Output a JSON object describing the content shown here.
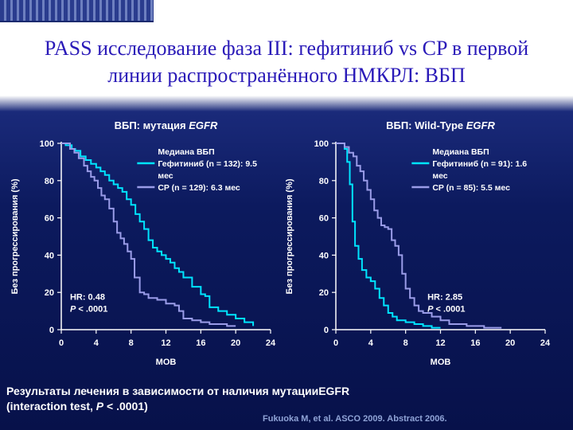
{
  "slide": {
    "title_line1": "PASS исследование фаза III: гефитиниб vs CP в первой",
    "title_line2": "линии распространённого НМКРЛ: ВБП",
    "bottom_line1": "Результаты лечения в зависимости от наличия мутацииEGFR",
    "bottom_line2_a": "(interaction test, ",
    "bottom_line2_p": "P",
    "bottom_line2_b": " < .0001)",
    "reference": "Fukuoka M, et al. ASCO 2009. Abstract 2006."
  },
  "colors": {
    "gefitinib": "#00e5ff",
    "cp": "#9a9ce8",
    "axis": "#ffffff",
    "text": "#ffffff"
  },
  "chart_data": [
    {
      "type": "line",
      "title_plain": "ВБП: мутация ",
      "title_italic": "EGFR",
      "xlabel": "МОВ",
      "ylabel": "Без прогрессирования (%)",
      "xlim": [
        0,
        24
      ],
      "ylim": [
        0,
        100
      ],
      "xticks": [
        0,
        4,
        8,
        12,
        16,
        20,
        24
      ],
      "yticks": [
        0,
        20,
        40,
        60,
        80,
        100
      ],
      "legend_title": "Медиана ВБП",
      "legend": [
        "Гефитиниб (n = 132): 9.5",
        "мес",
        "CP (n = 129): 6.3 мес"
      ],
      "hr_text": "HR: 0.48",
      "p_label": "P",
      "p_text": " < .0001",
      "series": [
        {
          "name": "Гефитиниб (n = 132): 9.5 мес",
          "x": [
            0,
            0.5,
            1.2,
            1.6,
            2.2,
            2.8,
            3.4,
            4.0,
            4.5,
            5.0,
            5.5,
            6.0,
            6.5,
            7.0,
            7.5,
            8.0,
            8.5,
            9.0,
            9.5,
            10.0,
            10.5,
            11.0,
            11.5,
            12.0,
            12.5,
            13.0,
            13.5,
            14.0,
            15.0,
            16.0,
            16.5,
            17.0,
            18.0,
            19.0,
            20.0,
            21.0,
            22.0
          ],
          "y": [
            100,
            99,
            97,
            96,
            93,
            91,
            89,
            87,
            85,
            83,
            80,
            78,
            76,
            74,
            70,
            67,
            62,
            58,
            54,
            48,
            44,
            42,
            40,
            38,
            36,
            33,
            31,
            28,
            23,
            19,
            18,
            12,
            10,
            8,
            6,
            4,
            2
          ]
        },
        {
          "name": "CP (n = 129): 6.3 мес",
          "x": [
            0,
            1.0,
            1.5,
            2.0,
            2.6,
            3.0,
            3.4,
            3.8,
            4.2,
            4.6,
            5.0,
            5.5,
            6.0,
            6.4,
            6.8,
            7.2,
            7.6,
            8.0,
            8.4,
            9.0,
            9.5,
            10.0,
            11.0,
            12.0,
            13.0,
            13.5,
            14.0,
            15.0,
            16.0,
            17.0,
            18.0,
            19.0,
            20.0
          ],
          "y": [
            100,
            97,
            95,
            92,
            88,
            85,
            82,
            80,
            76,
            72,
            70,
            65,
            58,
            52,
            49,
            46,
            42,
            38,
            28,
            20,
            19,
            17,
            16,
            14,
            13,
            10,
            6,
            5,
            4,
            3,
            3,
            2,
            2
          ]
        }
      ]
    },
    {
      "type": "line",
      "title_plain": "ВБП: Wild-Type ",
      "title_italic": "EGFR",
      "xlabel": "МОВ",
      "ylabel": "Без прогрессирования (%)",
      "xlim": [
        0,
        24
      ],
      "ylim": [
        0,
        100
      ],
      "xticks": [
        0,
        4,
        8,
        12,
        16,
        20,
        24
      ],
      "yticks": [
        0,
        20,
        40,
        60,
        80,
        100
      ],
      "legend_title": "Медиана ВБП",
      "legend": [
        "Гефитиниб (n = 91): 1.6",
        "мес",
        "CP (n = 85): 5.5 мес"
      ],
      "hr_text": "HR: 2.85",
      "p_label": "P",
      "p_text": " < .0001",
      "series": [
        {
          "name": "Гефитиниб (n = 91): 1.6 мес",
          "x": [
            0,
            1.0,
            1.3,
            1.6,
            1.9,
            2.2,
            2.6,
            3.0,
            3.5,
            4.0,
            4.5,
            5.0,
            5.5,
            6.0,
            6.5,
            7.0,
            8.0,
            9.0,
            10.0,
            11.0,
            12.0
          ],
          "y": [
            100,
            97,
            90,
            78,
            58,
            45,
            38,
            32,
            28,
            26,
            22,
            17,
            13,
            9,
            7,
            5,
            4,
            3,
            2,
            1,
            1
          ]
        },
        {
          "name": "CP (n = 85): 5.5 мес",
          "x": [
            0,
            1.0,
            1.5,
            2.0,
            2.4,
            2.8,
            3.2,
            3.6,
            4.0,
            4.4,
            4.8,
            5.2,
            5.6,
            6.0,
            6.4,
            6.8,
            7.2,
            7.6,
            8.0,
            8.5,
            9.0,
            9.5,
            10.0,
            11.0,
            12.0,
            13.0,
            14.0,
            15.0,
            17.0,
            19.0
          ],
          "y": [
            100,
            98,
            95,
            93,
            88,
            85,
            80,
            75,
            70,
            64,
            60,
            56,
            55,
            54,
            48,
            45,
            40,
            30,
            22,
            17,
            13,
            10,
            9,
            7,
            5,
            3,
            3,
            2,
            1,
            1
          ]
        }
      ]
    }
  ]
}
